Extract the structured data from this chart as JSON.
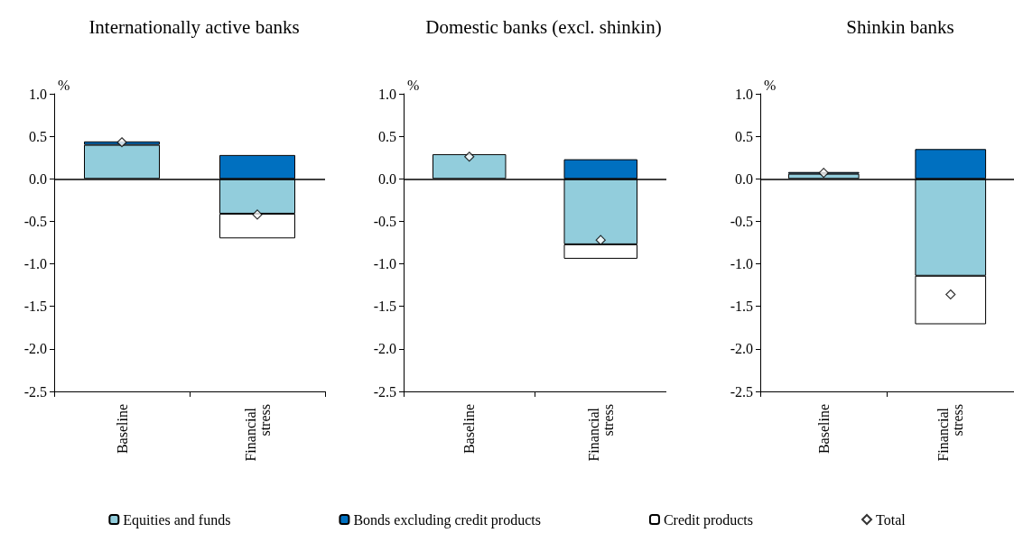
{
  "chart_data": [
    {
      "type": "bar",
      "title": "Internationally active banks",
      "ylabel": "%",
      "categories": [
        "Baseline",
        "Financial stress"
      ],
      "stacked": true,
      "legend": "bottom",
      "marker": "diamond",
      "ylim": [
        -2.5,
        1
      ],
      "yticks": [
        {
          "value": -2.5,
          "label": "-2.5"
        },
        {
          "value": -2,
          "label": "-2.0"
        },
        {
          "value": -1.5,
          "label": "-1.5"
        },
        {
          "value": -1,
          "label": "-1.0"
        },
        {
          "value": -0.5,
          "label": "-0.5"
        },
        {
          "value": 0,
          "label": "0.0"
        },
        {
          "value": 0.5,
          "label": "0.5"
        },
        {
          "value": 1,
          "label": "1.0"
        }
      ],
      "ref_lines": [
        {
          "axis": "y",
          "value": 0,
          "color": "#000000"
        }
      ],
      "series": [
        {
          "name": "Equities and funds",
          "color": "#92cddc",
          "values": [
            0.4,
            -0.41
          ]
        },
        {
          "name": "Bonds excluding credit products",
          "color": "#0070c0",
          "values": [
            0.04,
            0.28
          ]
        },
        {
          "name": "Credit products",
          "color": "#ffffff",
          "values": [
            null,
            -0.29
          ]
        },
        {
          "name": "Total",
          "type": "scatter",
          "color": "#ffffff",
          "x": [
            "Baseline",
            "Financial stress"
          ],
          "values": [
            0.43,
            -0.42
          ]
        }
      ]
    },
    {
      "type": "bar",
      "title": "Domestic banks (excl. shinkin)",
      "ylabel": "%",
      "categories": [
        "Baseline",
        "Financial stress"
      ],
      "stacked": true,
      "marker": "diamond",
      "ylim": [
        -2.5,
        1
      ],
      "yticks": [
        {
          "value": -2.5,
          "label": "-2.5"
        },
        {
          "value": -2,
          "label": "-2.0"
        },
        {
          "value": -1.5,
          "label": "-1.5"
        },
        {
          "value": -1,
          "label": "-1.0"
        },
        {
          "value": -0.5,
          "label": "-0.5"
        },
        {
          "value": 0,
          "label": "0.0"
        },
        {
          "value": 0.5,
          "label": "0.5"
        },
        {
          "value": 1,
          "label": "1.0"
        }
      ],
      "ref_lines": [
        {
          "axis": "y",
          "value": 0,
          "color": "#000000"
        }
      ],
      "series": [
        {
          "color": "#92cddc",
          "values": [
            0.29,
            -0.77
          ]
        },
        {
          "color": "#0070c0",
          "values": [
            null,
            0.23
          ]
        },
        {
          "color": "#ffffff",
          "values": [
            null,
            -0.17
          ]
        },
        {
          "type": "scatter",
          "color": "#ffffff",
          "x": [
            "Baseline",
            "Financial stress"
          ],
          "values": [
            0.26,
            -0.72
          ]
        }
      ]
    },
    {
      "type": "bar",
      "title": "Shinkin banks",
      "ylabel": "%",
      "categories": [
        "Baseline",
        "Financial stress"
      ],
      "stacked": true,
      "marker": "diamond",
      "ylim": [
        -2.5,
        1
      ],
      "yticks": [
        {
          "value": -2.5,
          "label": "-2.5"
        },
        {
          "value": -2,
          "label": "-2.0"
        },
        {
          "value": -1.5,
          "label": "-1.5"
        },
        {
          "value": -1,
          "label": "-1.0"
        },
        {
          "value": -0.5,
          "label": "-0.5"
        },
        {
          "value": 0,
          "label": "0.0"
        },
        {
          "value": 0.5,
          "label": "0.5"
        },
        {
          "value": 1,
          "label": "1.0"
        }
      ],
      "ref_lines": [
        {
          "axis": "y",
          "value": 0,
          "color": "#000000"
        }
      ],
      "series": [
        {
          "color": "#92cddc",
          "values": [
            0.06,
            -1.14
          ]
        },
        {
          "color": "#0070c0",
          "values": [
            0.02,
            0.35
          ]
        },
        {
          "color": "#ffffff",
          "values": [
            null,
            -0.57
          ]
        },
        {
          "type": "scatter",
          "color": "#ffffff",
          "x": [
            "Baseline",
            "Financial stress"
          ],
          "values": [
            0.07,
            -1.36
          ]
        }
      ]
    }
  ]
}
